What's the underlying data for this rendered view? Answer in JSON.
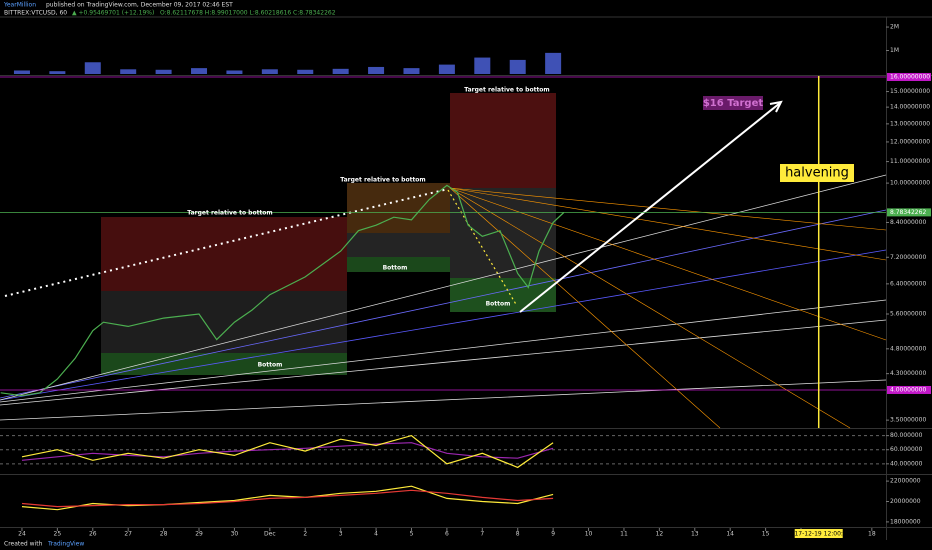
{
  "header": {
    "author": "YearMillion",
    "published": "published on TradingView.com, December 09, 2017 02:46 EST",
    "footer": "Created with",
    "brand": "TradingView"
  },
  "chart_data": [
    {
      "type": "line",
      "symbol": "BITTREX:VTCUSD, 60",
      "change": "▲ +0.95469701 (+12.19%)",
      "ohlc": "O:8.62117678 H:8.99017000 L:8.60218616 C:8.78342262",
      "log_scale": true,
      "grid": false,
      "xlim": [
        -0.62,
        24.4
      ],
      "xticks": [
        {
          "value": 0,
          "label": "24"
        },
        {
          "value": 1,
          "label": "25"
        },
        {
          "value": 2,
          "label": "26"
        },
        {
          "value": 3,
          "label": "27"
        },
        {
          "value": 4,
          "label": "28"
        },
        {
          "value": 5,
          "label": "29"
        },
        {
          "value": 6,
          "label": "30"
        },
        {
          "value": 7,
          "label": "Dec"
        },
        {
          "value": 8,
          "label": "2"
        },
        {
          "value": 9,
          "label": "3"
        },
        {
          "value": 10,
          "label": "4"
        },
        {
          "value": 11,
          "label": "5"
        },
        {
          "value": 12,
          "label": "6"
        },
        {
          "value": 13,
          "label": "7"
        },
        {
          "value": 14,
          "label": "8"
        },
        {
          "value": 15,
          "label": "9"
        },
        {
          "value": 16,
          "label": "10"
        },
        {
          "value": 17,
          "label": "11"
        },
        {
          "value": 18,
          "label": "12"
        },
        {
          "value": 19,
          "label": "13"
        },
        {
          "value": 20,
          "label": "14"
        },
        {
          "value": 21,
          "label": "15"
        },
        {
          "value": 22,
          "label": "16"
        },
        {
          "value": 24,
          "label": "18"
        }
      ],
      "ylim": [
        3.38,
        16.07
      ],
      "yticks": [
        {
          "value": 3.5,
          "label": "3.50000000"
        },
        {
          "value": 4.3,
          "label": "4.30000000"
        },
        {
          "value": 4.8,
          "label": "4.80000000"
        },
        {
          "value": 5.6,
          "label": "5.60000000"
        },
        {
          "value": 6.4,
          "label": "6.40000000"
        },
        {
          "value": 7.2,
          "label": "7.20000000"
        },
        {
          "value": 8.4,
          "label": "8.40000000"
        },
        {
          "value": 10,
          "label": "10.00000000"
        },
        {
          "value": 11,
          "label": "11.00000000"
        },
        {
          "value": 12,
          "label": "12.00000000"
        },
        {
          "value": 13,
          "label": "13.00000000"
        },
        {
          "value": 14,
          "label": "14.00000000"
        },
        {
          "value": 15,
          "label": "15.00000000"
        }
      ],
      "levels": [
        {
          "value": 16,
          "label": "16.00000000",
          "color": "#c218c8"
        },
        {
          "value": 4,
          "label": "4.00000000",
          "color": "#c218c8"
        },
        {
          "value": 8.78342262,
          "label": "8.78342262",
          "color": "#4caf50"
        }
      ],
      "series": [
        {
          "color": "#4caf50",
          "x": [
            -0.6,
            0,
            0.5,
            1,
            1.5,
            2,
            2.3,
            3,
            4,
            5,
            5.5,
            6,
            6.5,
            7,
            8,
            9,
            9.5,
            10,
            10.5,
            11,
            11.5,
            12,
            12.3,
            12.6,
            13,
            13.5,
            14,
            14.3,
            14.6,
            15,
            15.3
          ],
          "values": [
            3.95,
            3.9,
            3.95,
            4.2,
            4.6,
            5.2,
            5.4,
            5.3,
            5.5,
            5.6,
            5.0,
            5.4,
            5.7,
            6.1,
            6.6,
            7.4,
            8.1,
            8.3,
            8.6,
            8.5,
            9.3,
            9.9,
            9.6,
            8.3,
            7.9,
            8.1,
            6.7,
            6.3,
            7.4,
            8.4,
            8.78
          ]
        }
      ],
      "annotations": [
        "Target relative to bottom",
        "Target relative to bottom",
        "Target relative to bottom",
        "Bottom",
        "Bottom",
        "Bottom",
        "$16 Target",
        "halvening"
      ],
      "event": {
        "x": 22.5,
        "label": "2017-12-19 12:00:00"
      }
    },
    {
      "type": "bar",
      "ylim": [
        0,
        2300000
      ],
      "yticks": [
        {
          "value": 1000000,
          "label": "1M"
        },
        {
          "value": 2000000,
          "label": "2M"
        }
      ],
      "series": [
        {
          "color": "#3f51b5",
          "x": [
            0,
            1,
            2,
            3,
            4,
            5,
            6,
            7,
            8,
            9,
            10,
            11,
            12,
            13,
            14,
            15
          ],
          "values": [
            150000,
            120000,
            500000,
            200000,
            180000,
            250000,
            150000,
            200000,
            180000,
            220000,
            300000,
            250000,
            400000,
            700000,
            600000,
            900000
          ]
        }
      ]
    },
    {
      "type": "line",
      "ylim": [
        27,
        88
      ],
      "yticks": [
        {
          "value": 40,
          "label": "40.000000"
        },
        {
          "value": 60,
          "label": "60.000000"
        },
        {
          "value": 80,
          "label": "80.000000"
        }
      ],
      "series": [
        {
          "color": "#9c27b0",
          "x": [
            0,
            1,
            2,
            3,
            4,
            5,
            6,
            7,
            8,
            9,
            10,
            11,
            12,
            13,
            14,
            15
          ],
          "values": [
            45,
            50,
            55,
            52,
            50,
            55,
            58,
            60,
            62,
            65,
            68,
            70,
            55,
            50,
            48,
            62
          ]
        },
        {
          "color": "#ffeb3b",
          "x": [
            0,
            1,
            2,
            3,
            4,
            5,
            6,
            7,
            8,
            9,
            10,
            11,
            12,
            13,
            14,
            15
          ],
          "values": [
            50,
            60,
            45,
            55,
            48,
            60,
            52,
            70,
            58,
            75,
            66,
            80,
            40,
            55,
            35,
            70
          ]
        }
      ]
    },
    {
      "type": "line",
      "ylim": [
        17500000,
        22500000
      ],
      "yticks": [
        18000000,
        20000000,
        22000000
      ],
      "series": [
        {
          "color": "#ffeb3b",
          "x": [
            0,
            1,
            2,
            3,
            4,
            5,
            6,
            7,
            8,
            9,
            10,
            11,
            12,
            13,
            14,
            15
          ],
          "values": [
            19500000,
            19200000,
            19800000,
            19600000,
            19700000,
            19900000,
            20100000,
            20600000,
            20400000,
            20800000,
            21000000,
            21500000,
            20300000,
            20000000,
            19800000,
            20700000
          ]
        },
        {
          "color": "#e53935",
          "x": [
            0,
            1,
            2,
            3,
            4,
            5,
            6,
            7,
            8,
            9,
            10,
            11,
            12,
            13,
            14,
            15
          ],
          "values": [
            19800000,
            19500000,
            19600000,
            19700000,
            19700000,
            19800000,
            20000000,
            20300000,
            20400000,
            20600000,
            20800000,
            21100000,
            20800000,
            20400000,
            20100000,
            20300000
          ]
        }
      ]
    }
  ]
}
